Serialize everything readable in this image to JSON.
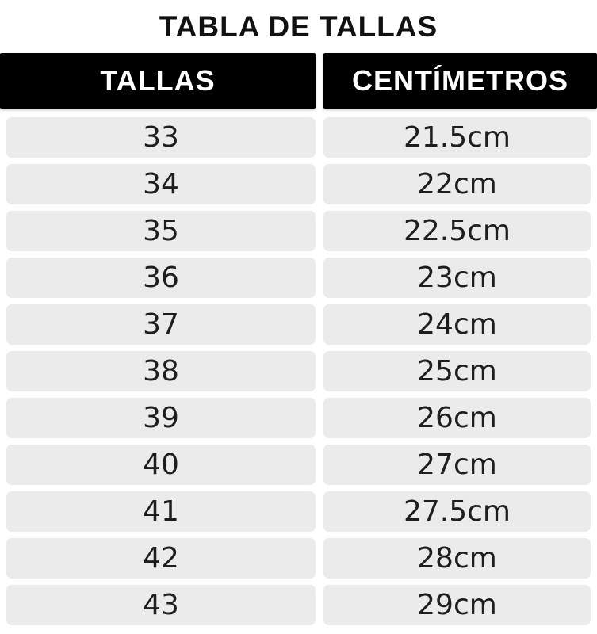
{
  "title": "TABLA DE TALLAS",
  "table": {
    "header": {
      "left": "TALLAS",
      "right": "CENTÍMETROS"
    },
    "rows": [
      {
        "size": "33",
        "cm": "21.5cm"
      },
      {
        "size": "34",
        "cm": "22cm"
      },
      {
        "size": "35",
        "cm": "22.5cm"
      },
      {
        "size": "36",
        "cm": "23cm"
      },
      {
        "size": "37",
        "cm": "24cm"
      },
      {
        "size": "38",
        "cm": "25cm"
      },
      {
        "size": "39",
        "cm": "26cm"
      },
      {
        "size": "40",
        "cm": "27cm"
      },
      {
        "size": "41",
        "cm": "27.5cm"
      },
      {
        "size": "42",
        "cm": "28cm"
      },
      {
        "size": "43",
        "cm": "29cm"
      }
    ]
  },
  "colors": {
    "page_bg": "#ffffff",
    "header_bg": "#000000",
    "header_text": "#ffffff",
    "row_bg": "#ebebeb",
    "row_text": "#1e1e1e",
    "title_text": "#111111"
  }
}
